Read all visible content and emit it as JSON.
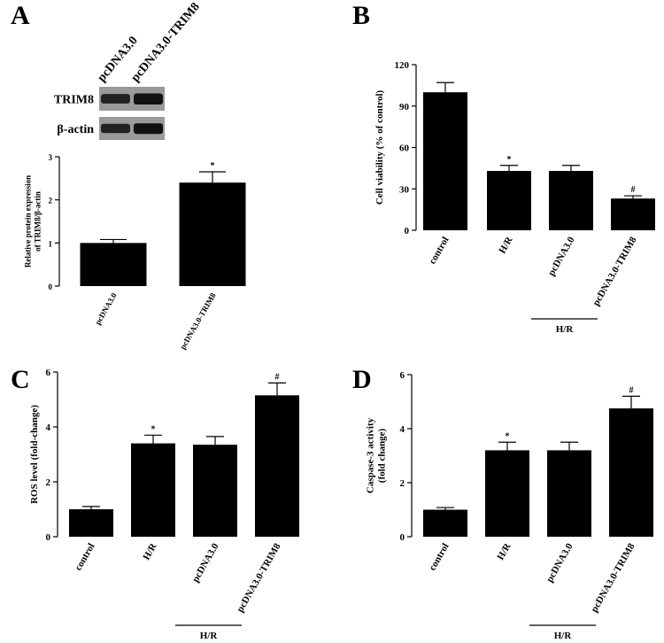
{
  "chart_data": [
    {
      "type": "bar",
      "panel": "A",
      "blot": {
        "lanes": [
          "pcDNA3.0",
          "pcDNA3.0-TRIM8"
        ],
        "rows": [
          "TRIM8",
          "β-actin"
        ]
      },
      "ylabel": [
        "Relative protein expression",
        "of TRIM8/β-actin"
      ],
      "categories": [
        "pcDNA3.0",
        "pcDNA3.0-TRIM8"
      ],
      "values": [
        1.0,
        2.4
      ],
      "errors": [
        0.08,
        0.25
      ],
      "annotations": [
        null,
        "*"
      ],
      "color": "#000000",
      "ylim": [
        0,
        3
      ],
      "yticks": [
        0,
        1,
        2,
        3
      ]
    },
    {
      "type": "bar",
      "panel": "B",
      "ylabel": [
        "Cell viability  (% of control)"
      ],
      "categories": [
        "control",
        "H/R",
        "pcDNA3.0",
        "pcDNA3.0-TRIM8"
      ],
      "values": [
        100,
        43,
        43,
        23
      ],
      "errors": [
        7,
        4,
        4,
        2
      ],
      "annotations": [
        null,
        "*",
        null,
        "#"
      ],
      "group_label": "H/R",
      "color": "#000000",
      "ylim": [
        0,
        120
      ],
      "yticks": [
        0,
        30,
        60,
        90,
        120
      ]
    },
    {
      "type": "bar",
      "panel": "C",
      "ylabel": [
        "ROS level (fold-change)"
      ],
      "categories": [
        "control",
        "H/R",
        "pcDNA3.0",
        "pcDNA3.0-TRIM8"
      ],
      "values": [
        1.0,
        3.4,
        3.35,
        5.15
      ],
      "errors": [
        0.1,
        0.3,
        0.3,
        0.45
      ],
      "annotations": [
        null,
        "*",
        null,
        "#"
      ],
      "group_label": "H/R",
      "color": "#000000",
      "ylim": [
        0,
        6
      ],
      "yticks": [
        0,
        2,
        4,
        6
      ]
    },
    {
      "type": "bar",
      "panel": "D",
      "ylabel": [
        "Caspase-3 activity",
        "(fold change)"
      ],
      "categories": [
        "control",
        "H/R",
        "pcDNA3.0",
        "pcDNA3.0-TRIM8"
      ],
      "values": [
        1.0,
        3.2,
        3.2,
        4.75
      ],
      "errors": [
        0.08,
        0.3,
        0.3,
        0.45
      ],
      "annotations": [
        null,
        "*",
        null,
        "#"
      ],
      "group_label": "H/R",
      "color": "#000000",
      "ylim": [
        0,
        6
      ],
      "yticks": [
        0,
        2,
        4,
        6
      ]
    }
  ]
}
